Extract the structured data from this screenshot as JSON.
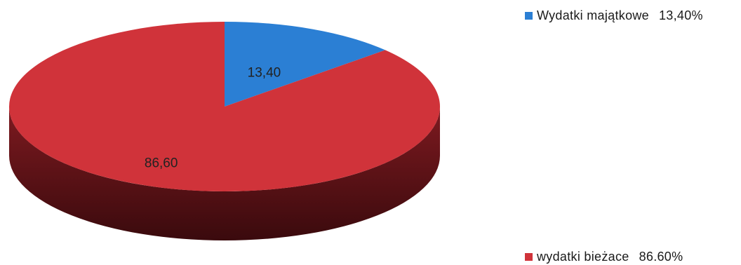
{
  "chart_data": {
    "type": "pie",
    "style": "3d",
    "categories": [
      "Wydatki majątkowe",
      "wydatki bieżace"
    ],
    "values": [
      13.4,
      86.6
    ],
    "slice_labels": [
      "13,40",
      "86,60"
    ],
    "legend_labels": [
      "Wydatki majątkowe",
      "wydatki bieżace"
    ],
    "legend_values": [
      "13,40%",
      "86.60%"
    ],
    "colors": [
      "#2b7fd4",
      "#d0333a"
    ],
    "side_colors": [
      "#1a4f8a",
      "#7e1a20"
    ],
    "legend_position": "right"
  }
}
